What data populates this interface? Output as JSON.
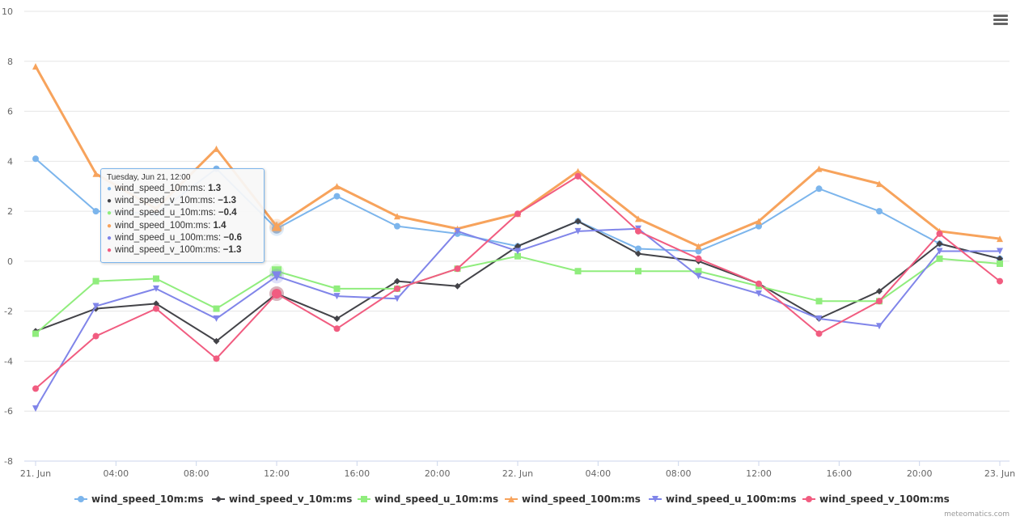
{
  "chart_data": {
    "type": "line",
    "title": "",
    "xlabel": "",
    "ylabel": "",
    "ylim": [
      -8,
      10
    ],
    "yticks": [
      -8,
      -6,
      -4,
      -2,
      0,
      2,
      4,
      6,
      8,
      10
    ],
    "x": [
      "21 Jun 00:00",
      "21 Jun 03:00",
      "21 Jun 06:00",
      "21 Jun 09:00",
      "21 Jun 12:00",
      "21 Jun 15:00",
      "21 Jun 18:00",
      "21 Jun 21:00",
      "22 Jun 00:00",
      "22 Jun 03:00",
      "22 Jun 06:00",
      "22 Jun 09:00",
      "22 Jun 12:00",
      "22 Jun 15:00",
      "22 Jun 18:00",
      "22 Jun 21:00",
      "23 Jun 00:00"
    ],
    "xtick_labels": [
      "21. Jun",
      "04:00",
      "08:00",
      "12:00",
      "16:00",
      "20:00",
      "22. Jun",
      "04:00",
      "08:00",
      "12:00",
      "16:00",
      "20:00",
      "23. Jun"
    ],
    "xtick_hours": [
      0,
      4,
      8,
      12,
      16,
      20,
      24,
      28,
      32,
      36,
      40,
      44,
      48
    ],
    "grid": true,
    "legend_position": "bottom",
    "series": [
      {
        "name": "wind_speed_10m:ms",
        "color": "#7cb5ec",
        "marker": "circle",
        "values": [
          4.1,
          2.0,
          1.9,
          3.7,
          1.3,
          2.6,
          1.4,
          1.1,
          0.6,
          1.6,
          0.5,
          0.4,
          1.4,
          2.9,
          2.0,
          0.7,
          0.1
        ]
      },
      {
        "name": "wind_speed_v_10m:ms",
        "color": "#434348",
        "marker": "diamond",
        "values": [
          -2.8,
          -1.9,
          -1.7,
          -3.2,
          -1.3,
          -2.3,
          -0.8,
          -1.0,
          0.6,
          1.6,
          0.3,
          0.0,
          -0.9,
          -2.3,
          -1.2,
          0.7,
          0.1
        ]
      },
      {
        "name": "wind_speed_u_10m:ms",
        "color": "#90ed7d",
        "marker": "square",
        "values": [
          -2.9,
          -0.8,
          -0.7,
          -1.9,
          -0.4,
          -1.1,
          -1.1,
          -0.3,
          0.2,
          -0.4,
          -0.4,
          -0.4,
          -1.0,
          -1.6,
          -1.6,
          0.1,
          -0.1
        ]
      },
      {
        "name": "wind_speed_100m:ms",
        "color": "#f7a35c",
        "marker": "triangle",
        "values": [
          7.8,
          3.5,
          2.1,
          4.5,
          1.4,
          3.0,
          1.8,
          1.3,
          1.9,
          3.6,
          1.7,
          0.6,
          1.6,
          3.7,
          3.1,
          1.2,
          0.9
        ]
      },
      {
        "name": "wind_speed_u_100m:ms",
        "color": "#8085e9",
        "marker": "triangle-down",
        "values": [
          -5.9,
          -1.8,
          -1.1,
          -2.3,
          -0.6,
          -1.4,
          -1.5,
          1.2,
          0.4,
          1.2,
          1.3,
          -0.6,
          -1.3,
          -2.3,
          -2.6,
          0.4,
          0.4
        ]
      },
      {
        "name": "wind_speed_v_100m:ms",
        "color": "#f15c80",
        "marker": "circle",
        "values": [
          -5.1,
          -3.0,
          -1.9,
          -3.9,
          -1.3,
          -2.7,
          -1.1,
          -0.3,
          1.9,
          3.4,
          1.2,
          0.1,
          -0.9,
          -2.9,
          -1.6,
          1.1,
          -0.8
        ]
      }
    ],
    "tooltip": {
      "header": "Tuesday, Jun 21, 12:00",
      "rows": [
        {
          "label": "wind_speed_10m:ms: ",
          "value": "1.3"
        },
        {
          "label": "wind_speed_v_10m:ms: ",
          "value": "−1.3"
        },
        {
          "label": "wind_speed_u_10m:ms: ",
          "value": "−0.4"
        },
        {
          "label": "wind_speed_100m:ms: ",
          "value": "1.4"
        },
        {
          "label": "wind_speed_u_100m:ms: ",
          "value": "−0.6"
        },
        {
          "label": "wind_speed_v_100m:ms: ",
          "value": "−1.3"
        }
      ]
    }
  },
  "credits": "meteomatics.com",
  "menu_icon": "hamburger-menu-icon"
}
